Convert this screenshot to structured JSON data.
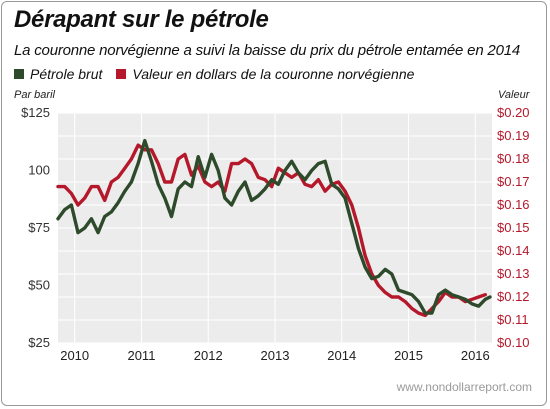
{
  "title": "Dérapant sur le pétrole",
  "subtitle": "La couronne norvégienne a suivi la baisse du prix du pétrole entamée en 2014",
  "left_axis_label": "Par baril",
  "right_axis_label": "Valeur",
  "footer": "www.nondollarreport.com",
  "colors": {
    "oil": "#2d4a2b",
    "nok": "#b5182a",
    "plot_bg": "#ececec"
  },
  "legend": [
    {
      "name": "Pétrole brut",
      "color": "#2d4a2b"
    },
    {
      "name": "Valeur en dollars de la couronne norvégienne",
      "color": "#b5182a"
    }
  ],
  "chart_data": {
    "type": "line",
    "x_range": [
      2009.75,
      2016.25
    ],
    "x_ticks": [
      2010,
      2011,
      2012,
      2013,
      2014,
      2015,
      2016
    ],
    "x_tick_labels": [
      "2010",
      "2011",
      "2012",
      "2013",
      "2014",
      "2015",
      "2016"
    ],
    "y_left": {
      "range": [
        25,
        125
      ],
      "ticks": [
        25,
        50,
        75,
        100,
        125
      ],
      "tick_labels": [
        "$25",
        "$50",
        "$75",
        "100",
        "$125"
      ]
    },
    "y_right": {
      "range": [
        0.1,
        0.2
      ],
      "ticks": [
        0.1,
        0.11,
        0.12,
        0.13,
        0.14,
        0.15,
        0.16,
        0.17,
        0.18,
        0.19,
        0.2
      ],
      "tick_labels": [
        "$0.10",
        "$0.11",
        "$0.12",
        "$0.13",
        "$0.14",
        "$0.15",
        "$0.16",
        "$0.17",
        "$0.18",
        "$0.19",
        "$0.20"
      ]
    },
    "grid": true,
    "legend_position": "top-left",
    "series": [
      {
        "name": "Pétrole brut",
        "axis": "left",
        "color": "#2d4a2b",
        "x": [
          2009.75,
          2009.85,
          2009.95,
          2010.05,
          2010.15,
          2010.25,
          2010.35,
          2010.45,
          2010.55,
          2010.65,
          2010.75,
          2010.85,
          2010.95,
          2011.05,
          2011.15,
          2011.25,
          2011.35,
          2011.45,
          2011.55,
          2011.65,
          2011.75,
          2011.85,
          2011.95,
          2012.05,
          2012.15,
          2012.25,
          2012.35,
          2012.45,
          2012.55,
          2012.65,
          2012.75,
          2012.85,
          2012.95,
          2013.05,
          2013.15,
          2013.25,
          2013.35,
          2013.45,
          2013.55,
          2013.65,
          2013.75,
          2013.85,
          2013.95,
          2014.05,
          2014.15,
          2014.25,
          2014.35,
          2014.45,
          2014.55,
          2014.65,
          2014.75,
          2014.85,
          2014.95,
          2015.05,
          2015.15,
          2015.25,
          2015.35,
          2015.45,
          2015.55,
          2015.65,
          2015.75,
          2015.85,
          2015.95,
          2016.05,
          2016.15,
          2016.22
        ],
        "values": [
          79,
          83,
          85,
          73,
          75,
          79,
          73,
          80,
          82,
          86,
          91,
          95,
          103,
          113,
          104,
          94,
          88,
          80,
          92,
          95,
          93,
          106,
          97,
          107,
          100,
          88,
          85,
          91,
          95,
          87,
          89,
          92,
          96,
          94,
          100,
          104,
          99,
          96,
          100,
          103,
          104,
          94,
          92,
          88,
          77,
          66,
          58,
          53,
          54,
          57,
          55,
          48,
          47,
          46,
          43,
          38,
          38,
          46,
          48,
          46,
          45,
          44,
          42,
          41,
          44,
          45
        ]
      },
      {
        "name": "Valeur en dollars de la couronne norvégienne",
        "axis": "right",
        "color": "#b5182a",
        "x": [
          2009.75,
          2009.85,
          2009.95,
          2010.05,
          2010.15,
          2010.25,
          2010.35,
          2010.45,
          2010.55,
          2010.65,
          2010.75,
          2010.85,
          2010.95,
          2011.05,
          2011.15,
          2011.25,
          2011.35,
          2011.45,
          2011.55,
          2011.65,
          2011.75,
          2011.85,
          2011.95,
          2012.05,
          2012.15,
          2012.25,
          2012.35,
          2012.45,
          2012.55,
          2012.65,
          2012.75,
          2012.85,
          2012.95,
          2013.05,
          2013.15,
          2013.25,
          2013.35,
          2013.45,
          2013.55,
          2013.65,
          2013.75,
          2013.85,
          2013.95,
          2014.05,
          2014.15,
          2014.25,
          2014.35,
          2014.45,
          2014.55,
          2014.65,
          2014.75,
          2014.85,
          2014.95,
          2015.05,
          2015.15,
          2015.25,
          2015.35,
          2015.45,
          2015.55,
          2015.65,
          2015.75,
          2015.85,
          2015.95,
          2016.05,
          2016.15
        ],
        "values": [
          0.168,
          0.168,
          0.165,
          0.16,
          0.163,
          0.168,
          0.168,
          0.162,
          0.17,
          0.172,
          0.176,
          0.18,
          0.186,
          0.184,
          0.184,
          0.178,
          0.17,
          0.17,
          0.18,
          0.182,
          0.173,
          0.177,
          0.17,
          0.168,
          0.17,
          0.166,
          0.178,
          0.178,
          0.18,
          0.178,
          0.172,
          0.171,
          0.168,
          0.176,
          0.174,
          0.172,
          0.174,
          0.169,
          0.168,
          0.171,
          0.166,
          0.169,
          0.17,
          0.166,
          0.16,
          0.15,
          0.138,
          0.13,
          0.125,
          0.122,
          0.12,
          0.12,
          0.118,
          0.115,
          0.113,
          0.112,
          0.115,
          0.118,
          0.122,
          0.12,
          0.12,
          0.118,
          0.119,
          0.12,
          0.121
        ]
      }
    ]
  }
}
